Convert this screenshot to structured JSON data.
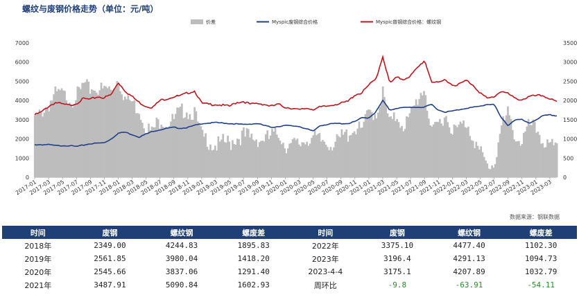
{
  "title": "螺纹与废钢价格走势（单位：元/吨）",
  "source": "数据来源：钢联数据",
  "chart_data": {
    "type": "bar+line",
    "title": "螺纹与废钢价格走势（单位：元/吨）",
    "legend": [
      {
        "name": "价差",
        "kind": "area",
        "color": "#bdbdbd"
      },
      {
        "name": "Myspic废钢综合价格",
        "kind": "line",
        "color": "#1f3f88"
      },
      {
        "name": "Myspic普钢综合价格：螺纹钢",
        "kind": "line",
        "color": "#c0141c"
      }
    ],
    "legend_position": "top",
    "y_left": {
      "min": 0,
      "max": 7000,
      "ticks": [
        0,
        1000,
        2000,
        3000,
        4000,
        5000,
        6000,
        7000
      ]
    },
    "y_right": {
      "min": 0,
      "max": 3500,
      "ticks": [
        0,
        500,
        1000,
        1500,
        2000,
        2500,
        3000,
        3500
      ]
    },
    "x_ticks": [
      "2017-01",
      "2017-03",
      "2017-05",
      "2017-07",
      "2017-09",
      "2017-11",
      "2018-01",
      "2018-03",
      "2018-05",
      "2018-07",
      "2018-09",
      "2018-11",
      "2019-01",
      "2019-03",
      "2019-05",
      "2019-07",
      "2019-09",
      "2019-11",
      "2020-01",
      "2020-03",
      "2020-05",
      "2020-07",
      "2020-09",
      "2020-11",
      "2021-01",
      "2021-03",
      "2021-05",
      "2021-07",
      "2021-09",
      "2021-11",
      "2022-01",
      "2022-03",
      "2022-05",
      "2022-07",
      "2022-09",
      "2022-11",
      "2023-01",
      "2023-03"
    ],
    "x_range": [
      "2017-01",
      "2023-04"
    ],
    "rebar_keypoints": [
      [
        0,
        3250
      ],
      [
        1,
        3400
      ],
      [
        2,
        3700
      ],
      [
        3,
        3900
      ],
      [
        4,
        3800
      ],
      [
        5,
        3750
      ],
      [
        6,
        3850
      ],
      [
        7,
        4100
      ],
      [
        8,
        4050
      ],
      [
        9,
        4200
      ],
      [
        10,
        4150
      ],
      [
        11,
        4300
      ],
      [
        12,
        4950
      ],
      [
        13,
        4500
      ],
      [
        14,
        4200
      ],
      [
        15,
        3900
      ],
      [
        16,
        3700
      ],
      [
        17,
        3650
      ],
      [
        18,
        4000
      ],
      [
        19,
        4100
      ],
      [
        20,
        4200
      ],
      [
        21,
        4250
      ],
      [
        22,
        4400
      ],
      [
        23,
        4500
      ],
      [
        24,
        3850
      ],
      [
        25,
        3800
      ],
      [
        26,
        3800
      ],
      [
        27,
        3750
      ],
      [
        28,
        3700
      ],
      [
        29,
        3900
      ],
      [
        30,
        3950
      ],
      [
        31,
        3800
      ],
      [
        32,
        3850
      ],
      [
        33,
        3800
      ],
      [
        34,
        3700
      ],
      [
        35,
        3800
      ],
      [
        36,
        3650
      ],
      [
        37,
        3600
      ],
      [
        38,
        3500
      ],
      [
        39,
        3600
      ],
      [
        40,
        3550
      ],
      [
        41,
        3650
      ],
      [
        42,
        3700
      ],
      [
        43,
        3800
      ],
      [
        44,
        3850
      ],
      [
        45,
        3950
      ],
      [
        46,
        4300
      ],
      [
        47,
        4400
      ],
      [
        48,
        4800
      ],
      [
        49,
        5100
      ],
      [
        50,
        6300
      ],
      [
        51,
        4900
      ],
      [
        52,
        5200
      ],
      [
        53,
        5100
      ],
      [
        54,
        5300
      ],
      [
        55,
        5700
      ],
      [
        56,
        6100
      ],
      [
        57,
        5000
      ],
      [
        58,
        4900
      ],
      [
        59,
        5100
      ],
      [
        60,
        4800
      ],
      [
        61,
        4850
      ],
      [
        62,
        5050
      ],
      [
        63,
        4800
      ],
      [
        64,
        4400
      ],
      [
        65,
        4100
      ],
      [
        66,
        4200
      ],
      [
        67,
        4500
      ],
      [
        68,
        4350
      ],
      [
        69,
        4100
      ],
      [
        70,
        4050
      ],
      [
        71,
        4200
      ],
      [
        72,
        4250
      ],
      [
        73,
        4250
      ],
      [
        74,
        4100
      ],
      [
        75,
        3900
      ]
    ],
    "scrap_keypoints": [
      [
        0,
        1700
      ],
      [
        2,
        1700
      ],
      [
        3,
        1650
      ],
      [
        5,
        1650
      ],
      [
        6,
        1600
      ],
      [
        8,
        1750
      ],
      [
        10,
        1800
      ],
      [
        11,
        2000
      ],
      [
        12,
        2300
      ],
      [
        13,
        2350
      ],
      [
        15,
        2100
      ],
      [
        17,
        2400
      ],
      [
        19,
        2550
      ],
      [
        20,
        2600
      ],
      [
        21,
        2550
      ],
      [
        22,
        2600
      ],
      [
        23,
        2700
      ],
      [
        24,
        2800
      ],
      [
        26,
        2850
      ],
      [
        28,
        2800
      ],
      [
        30,
        2750
      ],
      [
        32,
        2800
      ],
      [
        34,
        2600
      ],
      [
        36,
        2700
      ],
      [
        38,
        2650
      ],
      [
        40,
        2400
      ],
      [
        41,
        2700
      ],
      [
        43,
        2800
      ],
      [
        45,
        2800
      ],
      [
        46,
        2900
      ],
      [
        47,
        3100
      ],
      [
        48,
        3100
      ],
      [
        49,
        3400
      ],
      [
        50,
        4000
      ],
      [
        51,
        3500
      ],
      [
        52,
        3600
      ],
      [
        54,
        3650
      ],
      [
        56,
        3650
      ],
      [
        57,
        3800
      ],
      [
        58,
        3500
      ],
      [
        59,
        3400
      ],
      [
        60,
        3450
      ],
      [
        62,
        3600
      ],
      [
        64,
        3700
      ],
      [
        65,
        3800
      ],
      [
        66,
        3800
      ],
      [
        67,
        3100
      ],
      [
        68,
        2700
      ],
      [
        69,
        3000
      ],
      [
        70,
        3000
      ],
      [
        71,
        2800
      ],
      [
        72,
        3000
      ],
      [
        73,
        3200
      ],
      [
        74,
        3250
      ],
      [
        75,
        3200
      ]
    ],
    "note": "价差 area uses right axis; lines use left axis"
  },
  "table": {
    "headers": [
      "时间",
      "废钢",
      "螺纹钢",
      "螺废差",
      "时间",
      "废钢",
      "螺纹钢",
      "螺废差"
    ],
    "rows": [
      [
        "2018年",
        "2349.00",
        "4244.83",
        "1895.83",
        "2022年",
        "3375.10",
        "4477.40",
        "1102.30"
      ],
      [
        "2019年",
        "2561.85",
        "3980.04",
        "1418.20",
        "2023年",
        "3196.4",
        "4291.13",
        "1094.73"
      ],
      [
        "2020年",
        "2545.66",
        "3837.06",
        "1291.40",
        "2023-4-4",
        "3175.1",
        "4207.89",
        "1032.79"
      ],
      [
        "2021年",
        "3487.91",
        "5090.84",
        "1602.93",
        "周环比",
        "-9.8",
        "-63.91",
        "-54.11"
      ]
    ]
  }
}
